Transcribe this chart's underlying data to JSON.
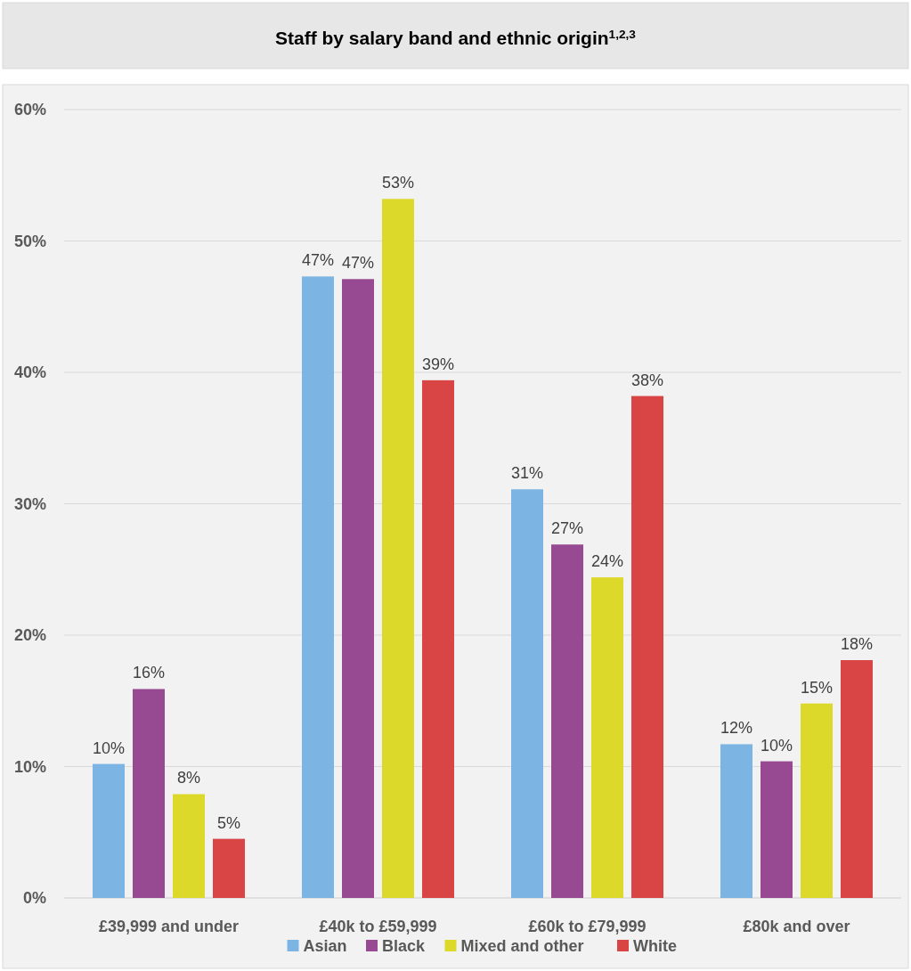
{
  "chart_data": {
    "type": "bar",
    "title": "Staff by salary band and ethnic origin$^{1,2,3}$",
    "categories": [
      "£39,999 and under",
      "£40k to £59,999",
      "£60k to £79,999",
      "£80k and over"
    ],
    "series": [
      {
        "name": "Asian",
        "color": "#7cb5e4",
        "values": [
          10.2,
          47.3,
          31.1,
          11.7
        ],
        "value_labels": [
          "10%",
          "47%",
          "31%",
          "12%"
        ]
      },
      {
        "name": "Black",
        "color": "#974a92",
        "values": [
          15.9,
          47.1,
          26.9,
          10.4
        ],
        "value_labels": [
          "16%",
          "47%",
          "27%",
          "10%"
        ]
      },
      {
        "name": "Mixed and other",
        "color": "#dcd92b",
        "values": [
          7.9,
          53.2,
          24.4,
          14.8
        ],
        "value_labels": [
          "8%",
          "53%",
          "24%",
          "15%"
        ]
      },
      {
        "name": "White",
        "color": "#d94545",
        "values": [
          4.5,
          39.4,
          38.2,
          18.1
        ],
        "value_labels": [
          "5%",
          "39%",
          "38%",
          "18%"
        ]
      }
    ],
    "ylim": [
      0,
      60
    ],
    "yticks": [
      {
        "value": 0,
        "label": "0%"
      },
      {
        "value": 10,
        "label": "10%"
      },
      {
        "value": 20,
        "label": "20%"
      },
      {
        "value": 30,
        "label": "30%"
      },
      {
        "value": 40,
        "label": "40%"
      },
      {
        "value": 50,
        "label": "50%"
      },
      {
        "value": 60,
        "label": "60%"
      }
    ],
    "grid": "y",
    "legend": "bottom"
  }
}
